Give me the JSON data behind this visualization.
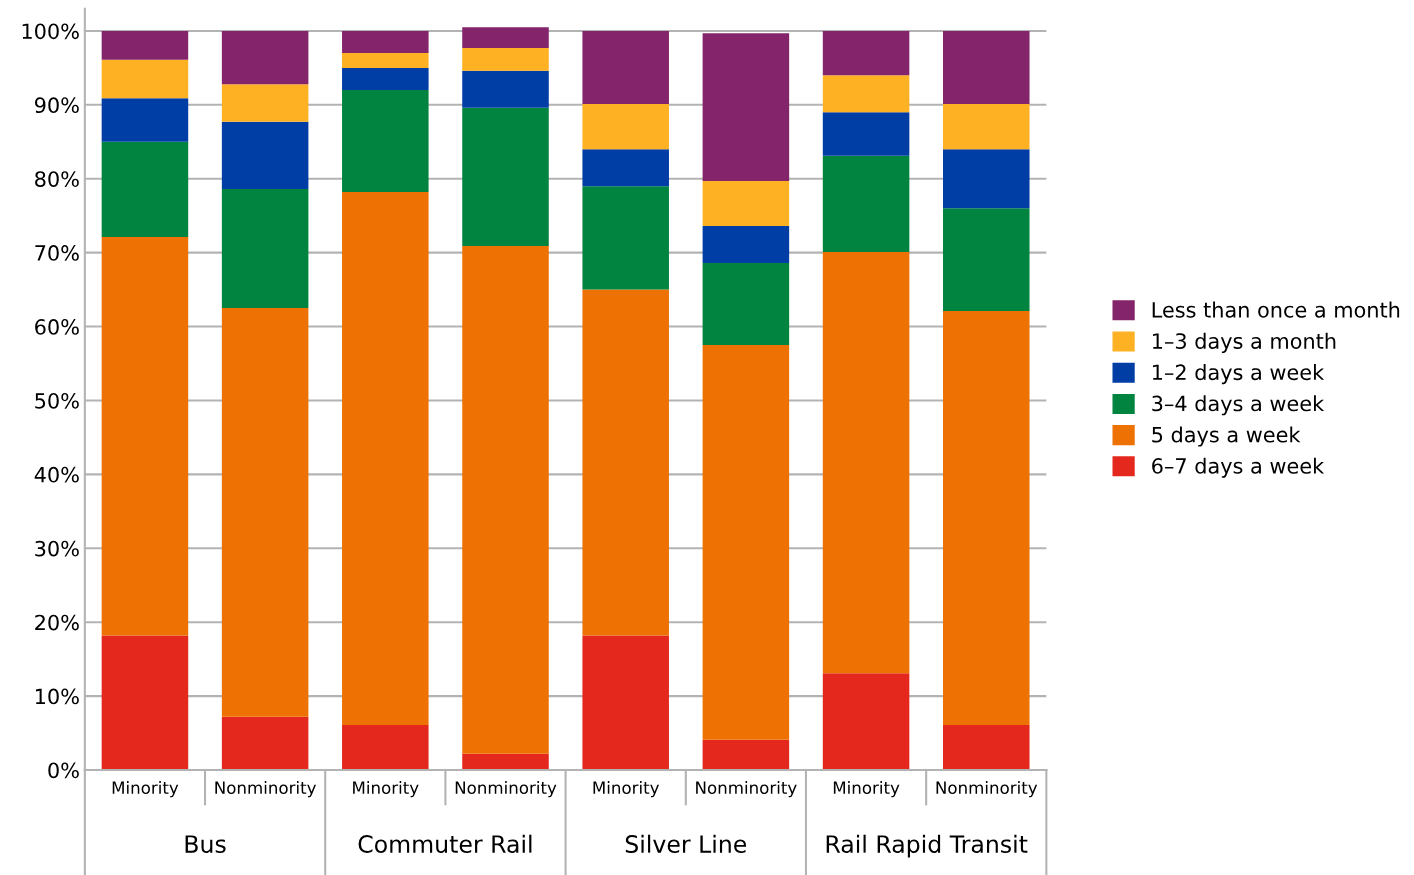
{
  "chart_data": {
    "type": "bar",
    "stacked": true,
    "categories": [
      "Minority",
      "Nonminority",
      "Minority",
      "Nonminority",
      "Minority",
      "Nonminority",
      "Minority",
      "Nonminority"
    ],
    "annotations": [
      "Bus",
      "Commuter Rail",
      "Silver Line",
      "Rail Rapid Transit"
    ],
    "series": [
      {
        "name": "6–7 days a week",
        "color": "#e5281e",
        "values": [
          18.2,
          7.2,
          6.1,
          2.2,
          18.2,
          4.1,
          13.1,
          6.1
        ]
      },
      {
        "name": "5 days a week",
        "color": "#ee7203",
        "values": [
          53.9,
          55.3,
          72.1,
          68.7,
          46.8,
          53.4,
          57.0,
          56.0
        ]
      },
      {
        "name": "3–4 days a week",
        "color": "#00843f",
        "values": [
          12.9,
          16.1,
          13.8,
          18.7,
          14.0,
          11.1,
          13.0,
          13.9
        ]
      },
      {
        "name": "1–2 days a week",
        "color": "#003da5",
        "values": [
          5.9,
          9.1,
          3.0,
          5.0,
          5.0,
          5.0,
          5.9,
          8.0
        ]
      },
      {
        "name": "1–3 days a month",
        "color": "#fdb123",
        "values": [
          5.2,
          5.1,
          2.0,
          3.1,
          6.1,
          6.1,
          5.0,
          6.1
        ]
      },
      {
        "name": "Less than once a month",
        "color": "#84246a",
        "values": [
          3.9,
          7.2,
          3.0,
          2.8,
          9.9,
          20.0,
          6.0,
          9.9
        ]
      }
    ],
    "ylim": [
      0,
      103
    ],
    "yticks": [
      {
        "value": 0,
        "label": "0%"
      },
      {
        "value": 10,
        "label": "10%"
      },
      {
        "value": 20,
        "label": "20%"
      },
      {
        "value": 30,
        "label": "30%"
      },
      {
        "value": 40,
        "label": "40%"
      },
      {
        "value": 50,
        "label": "50%"
      },
      {
        "value": 60,
        "label": "60%"
      },
      {
        "value": 70,
        "label": "70%"
      },
      {
        "value": 80,
        "label": "80%"
      },
      {
        "value": 90,
        "label": "90%"
      },
      {
        "value": 100,
        "label": "100%"
      }
    ],
    "grid": "y",
    "legend": "right"
  }
}
